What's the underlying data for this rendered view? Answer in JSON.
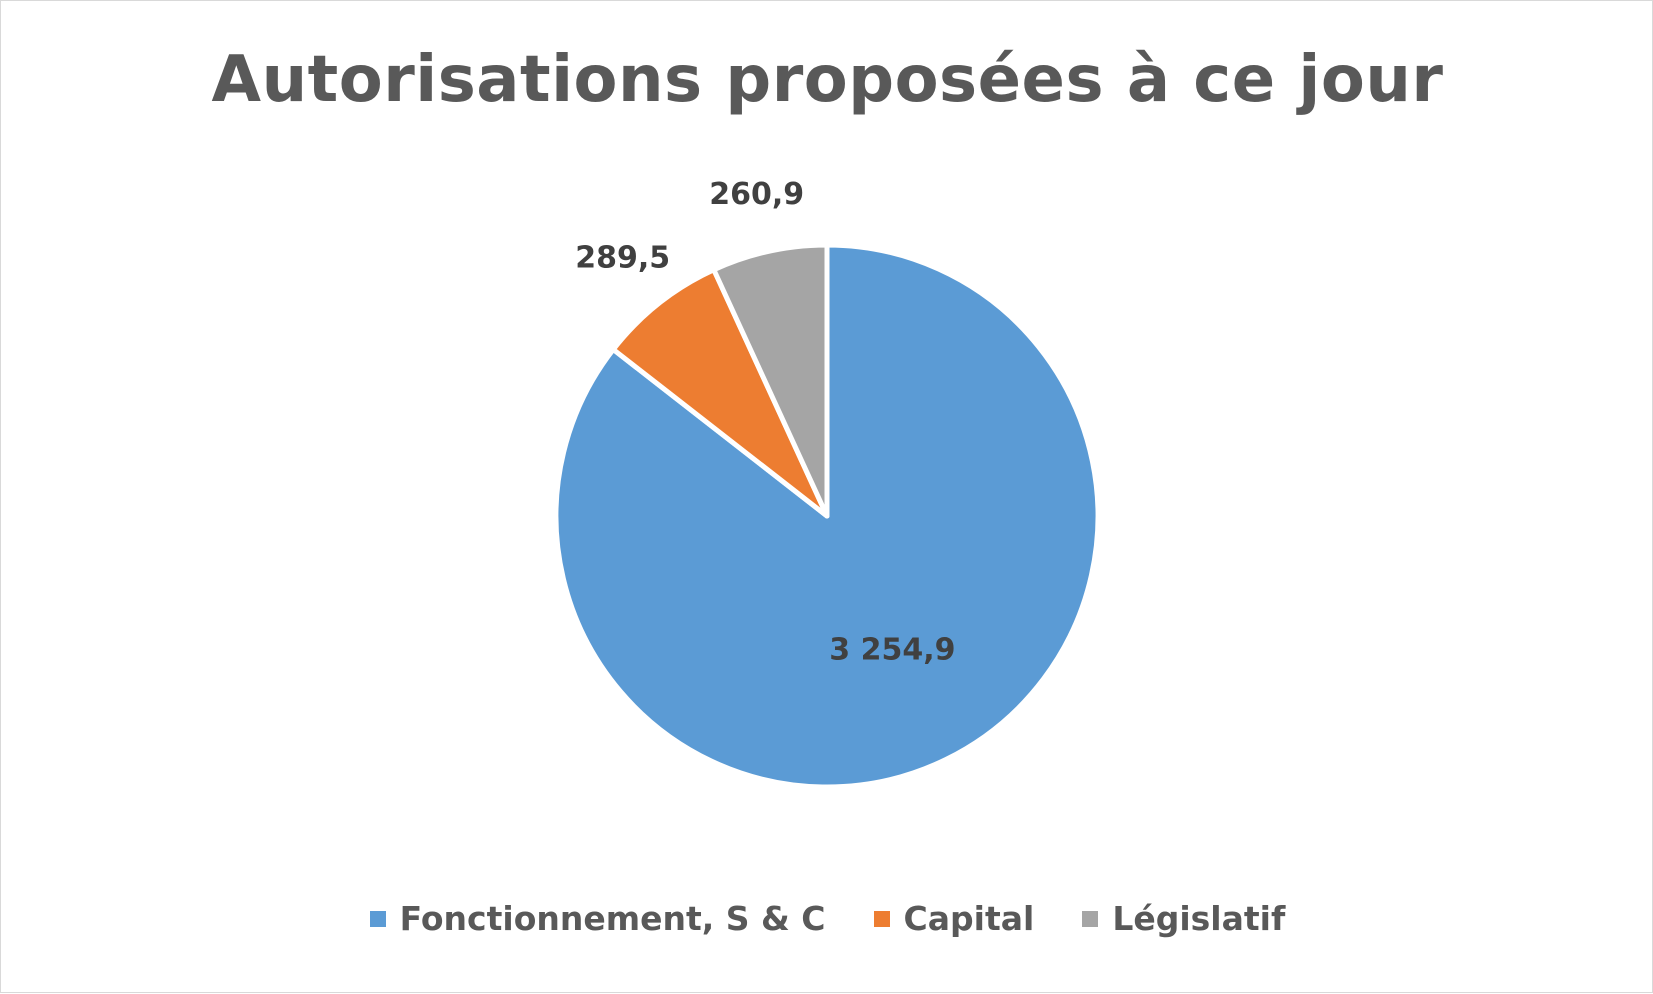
{
  "chart_data": {
    "type": "pie",
    "title": "Autorisations proposées à ce jour",
    "categories": [
      "Fonctionnement, S & C",
      "Capital",
      "Législatif"
    ],
    "values": [
      3254.9,
      289.5,
      260.9
    ],
    "data_labels": [
      "3 254,9",
      "289,5",
      "260,9"
    ],
    "colors": [
      "#5b9bd5",
      "#ed7d31",
      "#a5a5a5"
    ],
    "legend_position": "bottom",
    "start_angle_deg": 0,
    "direction": "clockwise"
  }
}
